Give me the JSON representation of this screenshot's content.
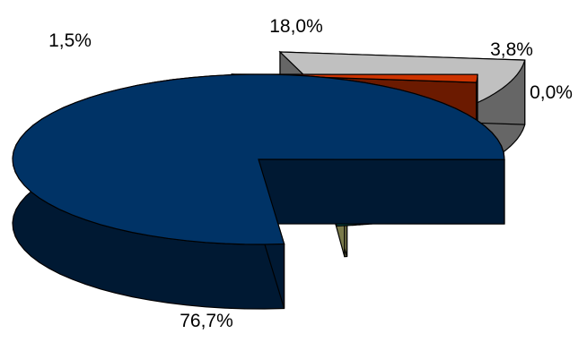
{
  "chart_data": {
    "type": "pie",
    "title": "",
    "three_d": true,
    "exploded": true,
    "slices": [
      {
        "label": "76,7%",
        "value": 76.7,
        "top_color": "#003366",
        "side_color": "#001933"
      },
      {
        "label": "1,5%",
        "value": 1.5,
        "top_color": "#cc3300",
        "side_color": "#6b1a00"
      },
      {
        "label": "18,0%",
        "value": 18.0,
        "top_color": "#c0c0c0",
        "side_color": "#666666"
      },
      {
        "label": "3,8%",
        "value": 3.8,
        "top_color": "#008080",
        "side_color": "#004d4d"
      },
      {
        "label": "0,0%",
        "value": 0.0,
        "top_color": "#999966",
        "side_color": "#7a7a4a"
      }
    ],
    "legend": "none",
    "grid": false
  }
}
